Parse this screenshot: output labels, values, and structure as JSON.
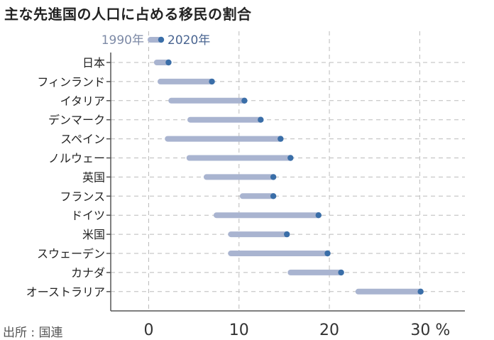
{
  "title": "主な先進国の人口に占める移民の割合",
  "source": "出所 : 国連",
  "colors": {
    "bar_1990": "#a9b4d0",
    "dot_2020": "#3a6ea8",
    "grid": "#bbbbbb",
    "axis": "#555555"
  },
  "chart_data": {
    "type": "dumbbell",
    "title": "主な先進国の人口に占める移民の割合",
    "legend": {
      "placement": "top-left",
      "entries": [
        "1990年",
        "2020年"
      ]
    },
    "categories": [
      "日本",
      "フィンランド",
      "イタリア",
      "デンマーク",
      "スペイン",
      "ノルウェー",
      "英国",
      "フランス",
      "ドイツ",
      "米国",
      "スウェーデン",
      "カナダ",
      "オーストラリア"
    ],
    "series": [
      {
        "name": "1990年",
        "values": [
          0.9,
          1.3,
          2.5,
          4.6,
          2.1,
          4.5,
          6.4,
          10.4,
          7.5,
          9.1,
          9.1,
          15.7,
          23.2
        ]
      },
      {
        "name": "2020年",
        "values": [
          2.2,
          7.0,
          10.6,
          12.4,
          14.6,
          15.7,
          13.8,
          13.8,
          18.8,
          15.3,
          19.8,
          21.3,
          30.1
        ]
      }
    ],
    "xticks": [
      "0",
      "10",
      "20",
      "30 %"
    ],
    "xtick_values": [
      0,
      10,
      20,
      30
    ],
    "xlim": [
      -4.2,
      35
    ],
    "grid": true
  }
}
